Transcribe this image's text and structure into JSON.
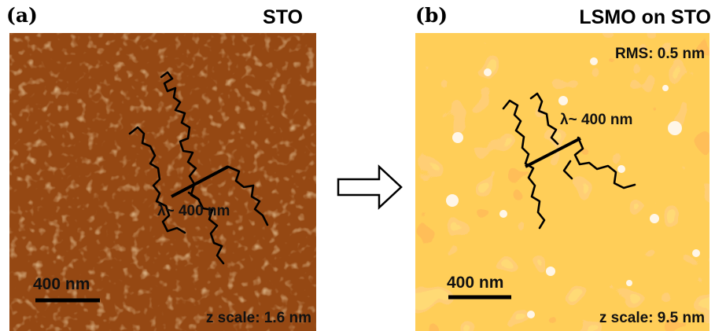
{
  "panels": [
    {
      "label": "(a)",
      "title": "STO",
      "wavelength": "λ~ 400 nm",
      "scale_bar": "400 nm",
      "z_scale": "z scale: 1.6 nm"
    },
    {
      "label": "(b)",
      "title": "LSMO on STO",
      "rms": "RMS: 0.5 nm",
      "wavelength": "λ~ 400 nm",
      "scale_bar": "400 nm",
      "z_scale": "z scale: 9.5 nm"
    }
  ]
}
